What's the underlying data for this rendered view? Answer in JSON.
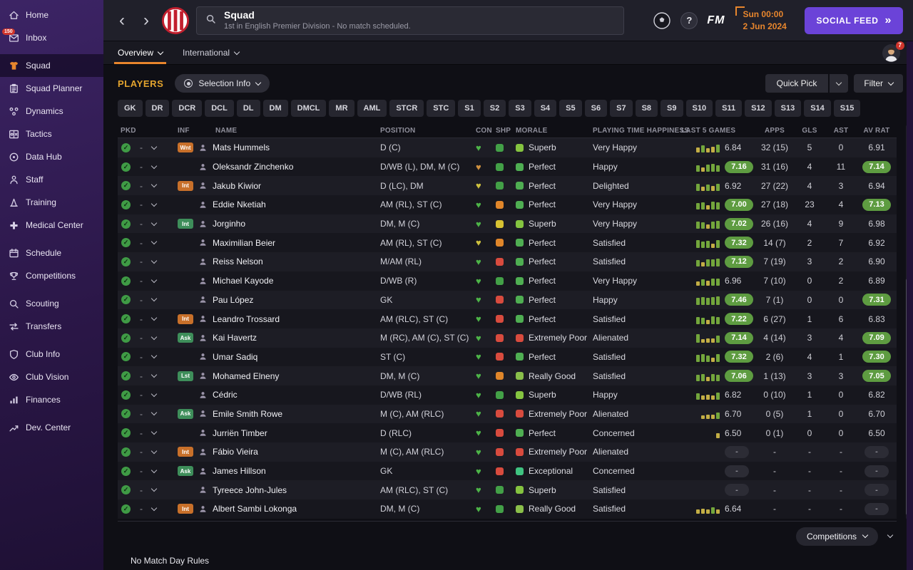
{
  "icons": {
    "back": "‹",
    "forward": "›",
    "help": "?",
    "social_chevrons": "»",
    "check": "✓",
    "heart": "♥"
  },
  "colors": {
    "accent_orange": "#e8862d",
    "pill_green": "#5e9c41",
    "bar_green": "#73a63c",
    "bar_yellow": "#c3ae45",
    "badge_orange": "#c8702a",
    "badge_green": "#3e8e5a",
    "social_purple": "#6b43d8"
  },
  "sidebar": {
    "items": [
      {
        "id": "home",
        "label": "Home",
        "icon": "home-icon"
      },
      {
        "id": "inbox",
        "label": "Inbox",
        "icon": "inbox-icon",
        "badge": "150"
      },
      {
        "id": "squad",
        "label": "Squad",
        "icon": "shirt-icon",
        "active": true,
        "group_start": true
      },
      {
        "id": "squad-planner",
        "label": "Squad Planner",
        "icon": "clipboard-icon"
      },
      {
        "id": "dynamics",
        "label": "Dynamics",
        "icon": "dynamics-icon"
      },
      {
        "id": "tactics",
        "label": "Tactics",
        "icon": "tactics-icon"
      },
      {
        "id": "data-hub",
        "label": "Data Hub",
        "icon": "datahub-icon"
      },
      {
        "id": "staff",
        "label": "Staff",
        "icon": "staff-icon"
      },
      {
        "id": "training",
        "label": "Training",
        "icon": "training-icon"
      },
      {
        "id": "medical-center",
        "label": "Medical Center",
        "icon": "medical-icon"
      },
      {
        "id": "schedule",
        "label": "Schedule",
        "icon": "calendar-icon",
        "group_start": true
      },
      {
        "id": "competitions",
        "label": "Competitions",
        "icon": "trophy-icon"
      },
      {
        "id": "scouting",
        "label": "Scouting",
        "icon": "scout-icon",
        "group_start": true
      },
      {
        "id": "transfers",
        "label": "Transfers",
        "icon": "transfer-icon"
      },
      {
        "id": "club-info",
        "label": "Club Info",
        "icon": "shield-icon",
        "group_start": true
      },
      {
        "id": "club-vision",
        "label": "Club Vision",
        "icon": "vision-icon"
      },
      {
        "id": "finances",
        "label": "Finances",
        "icon": "finance-icon"
      },
      {
        "id": "dev-center",
        "label": "Dev. Center",
        "icon": "devcenter-icon",
        "group_start": true
      }
    ]
  },
  "header": {
    "title": "Squad",
    "subtitle": "1st in English Premier Division - No match scheduled.",
    "fm_logo": "FM",
    "date_line1": "Sun 00:00",
    "date_line2": "2 Jun 2024",
    "social_feed": "SOCIAL FEED"
  },
  "tabbar": {
    "tabs": [
      {
        "label": "Overview",
        "active": true
      },
      {
        "label": "International",
        "active": false
      }
    ],
    "avatar_badge": "7"
  },
  "toolbar": {
    "players_label": "PLAYERS",
    "selection_info": "Selection Info",
    "quick_pick": "Quick Pick",
    "filter": "Filter"
  },
  "position_filters": [
    "GK",
    "DR",
    "DCR",
    "DCL",
    "DL",
    "DM",
    "DMCL",
    "MR",
    "AML",
    "STCR",
    "STC",
    "S1",
    "S2",
    "S3",
    "S4",
    "S5",
    "S6",
    "S7",
    "S8",
    "S9",
    "S10",
    "S11",
    "S12",
    "S13",
    "S14",
    "S15"
  ],
  "table": {
    "columns": [
      "PKD",
      "INF",
      "NAME",
      "POSITION",
      "CON",
      "SHP",
      "MORALE",
      "PLAYING TIME HAPPINESS",
      "LAST 5 GAMES",
      "APPS",
      "GLS",
      "AST",
      "AV RAT"
    ],
    "rows": [
      {
        "pkd": "-",
        "inf": "Wnt",
        "inf_color": "orange",
        "name": "Mats Hummels",
        "position": "D (C)",
        "con_color": "#4db548",
        "shp_color": "#43a047",
        "morale": "Superb",
        "morale_color": "#85c440",
        "happiness": "Very Happy",
        "last5_bars": [
          [
            "y",
            7
          ],
          [
            "g",
            10
          ],
          [
            "y",
            6
          ],
          [
            "y",
            8
          ],
          [
            "g",
            11
          ]
        ],
        "last5_rating": "6.84",
        "last5_pill": false,
        "apps": "32 (15)",
        "gls": "5",
        "ast": "0",
        "av_rat": "6.91",
        "av_rat_pill": false
      },
      {
        "pkd": "-",
        "inf": null,
        "inf_color": null,
        "name": "Oleksandr Zinchenko",
        "position": "D/WB (L), DM, M (C)",
        "con_color": "#d0913f",
        "shp_color": "#43a047",
        "morale": "Perfect",
        "morale_color": "#4fae52",
        "happiness": "Happy",
        "last5_bars": [
          [
            "g",
            9
          ],
          [
            "y",
            6
          ],
          [
            "g",
            10
          ],
          [
            "g",
            11
          ],
          [
            "g",
            9
          ]
        ],
        "last5_rating": "7.16",
        "last5_pill": true,
        "apps": "31 (16)",
        "gls": "4",
        "ast": "11",
        "av_rat": "7.14",
        "av_rat_pill": true
      },
      {
        "pkd": "-",
        "inf": "Int",
        "inf_color": "orange",
        "name": "Jakub Kiwior",
        "position": "D (LC), DM",
        "con_color": "#cfc23e",
        "shp_color": "#43a047",
        "morale": "Perfect",
        "morale_color": "#4fae52",
        "happiness": "Delighted",
        "last5_bars": [
          [
            "g",
            10
          ],
          [
            "y",
            6
          ],
          [
            "g",
            9
          ],
          [
            "y",
            7
          ],
          [
            "g",
            10
          ]
        ],
        "last5_rating": "6.92",
        "last5_pill": false,
        "apps": "27 (22)",
        "gls": "4",
        "ast": "3",
        "av_rat": "6.94",
        "av_rat_pill": false
      },
      {
        "pkd": "-",
        "inf": null,
        "inf_color": null,
        "name": "Eddie Nketiah",
        "position": "AM (RL), ST (C)",
        "con_color": "#4db548",
        "shp_color": "#e0862a",
        "morale": "Perfect",
        "morale_color": "#4fae52",
        "happiness": "Very Happy",
        "last5_bars": [
          [
            "g",
            9
          ],
          [
            "g",
            10
          ],
          [
            "y",
            6
          ],
          [
            "g",
            11
          ],
          [
            "g",
            10
          ]
        ],
        "last5_rating": "7.00",
        "last5_pill": true,
        "apps": "27 (18)",
        "gls": "23",
        "ast": "4",
        "av_rat": "7.13",
        "av_rat_pill": true
      },
      {
        "pkd": "-",
        "inf": "Int",
        "inf_color": "green",
        "name": "Jorginho",
        "position": "DM, M (C)",
        "con_color": "#4db548",
        "shp_color": "#d8c232",
        "morale": "Superb",
        "morale_color": "#85c440",
        "happiness": "Very Happy",
        "last5_bars": [
          [
            "g",
            10
          ],
          [
            "g",
            9
          ],
          [
            "y",
            6
          ],
          [
            "g",
            10
          ],
          [
            "g",
            11
          ]
        ],
        "last5_rating": "7.02",
        "last5_pill": true,
        "apps": "26 (16)",
        "gls": "4",
        "ast": "9",
        "av_rat": "6.98",
        "av_rat_pill": false
      },
      {
        "pkd": "-",
        "inf": null,
        "inf_color": null,
        "name": "Maximilian Beier",
        "position": "AM (RL), ST (C)",
        "con_color": "#cfc23e",
        "shp_color": "#e0862a",
        "morale": "Perfect",
        "morale_color": "#4fae52",
        "happiness": "Satisfied",
        "last5_bars": [
          [
            "g",
            11
          ],
          [
            "g",
            9
          ],
          [
            "g",
            10
          ],
          [
            "y",
            6
          ],
          [
            "g",
            11
          ]
        ],
        "last5_rating": "7.32",
        "last5_pill": true,
        "apps": "14 (7)",
        "gls": "2",
        "ast": "7",
        "av_rat": "6.92",
        "av_rat_pill": false
      },
      {
        "pkd": "-",
        "inf": null,
        "inf_color": null,
        "name": "Reiss Nelson",
        "position": "M/AM (RL)",
        "con_color": "#4db548",
        "shp_color": "#d84b3e",
        "morale": "Perfect",
        "morale_color": "#4fae52",
        "happiness": "Satisfied",
        "last5_bars": [
          [
            "g",
            9
          ],
          [
            "y",
            6
          ],
          [
            "g",
            10
          ],
          [
            "g",
            10
          ],
          [
            "g",
            11
          ]
        ],
        "last5_rating": "7.12",
        "last5_pill": true,
        "apps": "7 (19)",
        "gls": "3",
        "ast": "2",
        "av_rat": "6.90",
        "av_rat_pill": false
      },
      {
        "pkd": "-",
        "inf": null,
        "inf_color": null,
        "name": "Michael Kayode",
        "position": "D/WB (R)",
        "con_color": "#4db548",
        "shp_color": "#43a047",
        "morale": "Perfect",
        "morale_color": "#4fae52",
        "happiness": "Very Happy",
        "last5_bars": [
          [
            "y",
            6
          ],
          [
            "g",
            9
          ],
          [
            "y",
            7
          ],
          [
            "g",
            10
          ],
          [
            "g",
            10
          ]
        ],
        "last5_rating": "6.96",
        "last5_pill": false,
        "apps": "7 (10)",
        "gls": "0",
        "ast": "2",
        "av_rat": "6.89",
        "av_rat_pill": false
      },
      {
        "pkd": "-",
        "inf": null,
        "inf_color": null,
        "name": "Pau López",
        "position": "GK",
        "con_color": "#4db548",
        "shp_color": "#d84b3e",
        "morale": "Perfect",
        "morale_color": "#4fae52",
        "happiness": "Happy",
        "last5_bars": [
          [
            "g",
            10
          ],
          [
            "g",
            11
          ],
          [
            "g",
            10
          ],
          [
            "g",
            11
          ],
          [
            "g",
            12
          ]
        ],
        "last5_rating": "7.46",
        "last5_pill": true,
        "apps": "7 (1)",
        "gls": "0",
        "ast": "0",
        "av_rat": "7.31",
        "av_rat_pill": true
      },
      {
        "pkd": "-",
        "inf": "Int",
        "inf_color": "orange",
        "name": "Leandro Trossard",
        "position": "AM (RLC), ST (C)",
        "con_color": "#4db548",
        "shp_color": "#d84b3e",
        "morale": "Perfect",
        "morale_color": "#4fae52",
        "happiness": "Satisfied",
        "last5_bars": [
          [
            "g",
            10
          ],
          [
            "g",
            9
          ],
          [
            "y",
            6
          ],
          [
            "g",
            11
          ],
          [
            "g",
            10
          ]
        ],
        "last5_rating": "7.22",
        "last5_pill": true,
        "apps": "6 (27)",
        "gls": "1",
        "ast": "6",
        "av_rat": "6.83",
        "av_rat_pill": false
      },
      {
        "pkd": "-",
        "inf": "Ask",
        "inf_color": "green",
        "name": "Kai Havertz",
        "position": "M (RC), AM (C), ST (C)",
        "con_color": "#4db548",
        "shp_color": "#d84b3e",
        "morale": "Extremely Poor",
        "morale_color": "#d84b3e",
        "happiness": "Alienated",
        "last5_bars": [
          [
            "g",
            12
          ],
          [
            "y",
            5
          ],
          [
            "y",
            6
          ],
          [
            "y",
            6
          ],
          [
            "g",
            10
          ]
        ],
        "last5_rating": "7.14",
        "last5_pill": true,
        "apps": "4 (14)",
        "gls": "3",
        "ast": "4",
        "av_rat": "7.09",
        "av_rat_pill": true
      },
      {
        "pkd": "-",
        "inf": null,
        "inf_color": null,
        "name": "Umar Sadiq",
        "position": "ST (C)",
        "con_color": "#4db548",
        "shp_color": "#d84b3e",
        "morale": "Perfect",
        "morale_color": "#4fae52",
        "happiness": "Satisfied",
        "last5_bars": [
          [
            "g",
            10
          ],
          [
            "g",
            11
          ],
          [
            "g",
            9
          ],
          [
            "y",
            6
          ],
          [
            "g",
            11
          ]
        ],
        "last5_rating": "7.32",
        "last5_pill": true,
        "apps": "2 (6)",
        "gls": "4",
        "ast": "1",
        "av_rat": "7.30",
        "av_rat_pill": true
      },
      {
        "pkd": "-",
        "inf": "Lst",
        "inf_color": "green",
        "name": "Mohamed Elneny",
        "position": "DM, M (C)",
        "con_color": "#4db548",
        "shp_color": "#e0862a",
        "morale": "Really Good",
        "morale_color": "#8abf4a",
        "happiness": "Satisfied",
        "last5_bars": [
          [
            "g",
            9
          ],
          [
            "g",
            10
          ],
          [
            "y",
            6
          ],
          [
            "g",
            10
          ],
          [
            "g",
            9
          ]
        ],
        "last5_rating": "7.06",
        "last5_pill": true,
        "apps": "1 (13)",
        "gls": "3",
        "ast": "3",
        "av_rat": "7.05",
        "av_rat_pill": true
      },
      {
        "pkd": "-",
        "inf": null,
        "inf_color": null,
        "name": "Cédric",
        "position": "D/WB (RL)",
        "con_color": "#4db548",
        "shp_color": "#43a047",
        "morale": "Superb",
        "morale_color": "#85c440",
        "happiness": "Happy",
        "last5_bars": [
          [
            "g",
            9
          ],
          [
            "y",
            6
          ],
          [
            "y",
            7
          ],
          [
            "y",
            6
          ],
          [
            "g",
            10
          ]
        ],
        "last5_rating": "6.82",
        "last5_pill": false,
        "apps": "0 (10)",
        "gls": "1",
        "ast": "0",
        "av_rat": "6.82",
        "av_rat_pill": false
      },
      {
        "pkd": "-",
        "inf": "Ask",
        "inf_color": "green",
        "name": "Emile Smith Rowe",
        "position": "M (C), AM (RLC)",
        "con_color": "#4db548",
        "shp_color": "#d84b3e",
        "morale": "Extremely Poor",
        "morale_color": "#d84b3e",
        "happiness": "Alienated",
        "last5_bars": [
          [
            "y",
            5
          ],
          [
            "y",
            6
          ],
          [
            "y",
            6
          ],
          [
            "g",
            9
          ]
        ],
        "last5_rating": "6.70",
        "last5_pill": false,
        "apps": "0 (5)",
        "gls": "1",
        "ast": "0",
        "av_rat": "6.70",
        "av_rat_pill": false
      },
      {
        "pkd": "-",
        "inf": null,
        "inf_color": null,
        "name": "Jurriën Timber",
        "position": "D (RLC)",
        "con_color": "#4db548",
        "shp_color": "#d84b3e",
        "morale": "Perfect",
        "morale_color": "#4fae52",
        "happiness": "Concerned",
        "last5_bars": [
          [
            "y",
            7
          ]
        ],
        "last5_rating": "6.50",
        "last5_pill": false,
        "apps": "0 (1)",
        "gls": "0",
        "ast": "0",
        "av_rat": "6.50",
        "av_rat_pill": false
      },
      {
        "pkd": "-",
        "inf": "Int",
        "inf_color": "orange",
        "name": "Fábio Vieira",
        "position": "M (C), AM (RLC)",
        "con_color": "#4db548",
        "shp_color": "#d84b3e",
        "morale": "Extremely Poor",
        "morale_color": "#d84b3e",
        "happiness": "Alienated",
        "last5_bars": [],
        "last5_rating": "-",
        "last5_pill": false,
        "apps": "-",
        "gls": "-",
        "ast": "-",
        "av_rat": "-",
        "av_rat_pill": false
      },
      {
        "pkd": "-",
        "inf": "Ask",
        "inf_color": "green",
        "name": "James Hillson",
        "position": "GK",
        "con_color": "#4db548",
        "shp_color": "#d84b3e",
        "morale": "Exceptional",
        "morale_color": "#3fc380",
        "happiness": "Concerned",
        "last5_bars": [],
        "last5_rating": "-",
        "last5_pill": false,
        "apps": "-",
        "gls": "-",
        "ast": "-",
        "av_rat": "-",
        "av_rat_pill": false
      },
      {
        "pkd": "-",
        "inf": null,
        "inf_color": null,
        "name": "Tyreece John-Jules",
        "position": "AM (RLC), ST (C)",
        "con_color": "#4db548",
        "shp_color": "#43a047",
        "morale": "Superb",
        "morale_color": "#85c440",
        "happiness": "Satisfied",
        "last5_bars": [],
        "last5_rating": "-",
        "last5_pill": false,
        "apps": "-",
        "gls": "-",
        "ast": "-",
        "av_rat": "-",
        "av_rat_pill": false
      },
      {
        "pkd": "-",
        "inf": "Int",
        "inf_color": "orange",
        "name": "Albert Sambi Lokonga",
        "position": "DM, M (C)",
        "con_color": "#4db548",
        "shp_color": "#43a047",
        "morale": "Really Good",
        "morale_color": "#8abf4a",
        "happiness": "Satisfied",
        "last5_bars": [
          [
            "y",
            6
          ],
          [
            "y",
            7
          ],
          [
            "y",
            6
          ],
          [
            "g",
            9
          ],
          [
            "y",
            6
          ]
        ],
        "last5_rating": "6.64",
        "last5_pill": false,
        "apps": "-",
        "gls": "-",
        "ast": "-",
        "av_rat": "-",
        "av_rat_pill": false
      }
    ]
  },
  "footer": {
    "competitions": "Competitions",
    "no_match_day_rules": "No Match Day Rules"
  }
}
